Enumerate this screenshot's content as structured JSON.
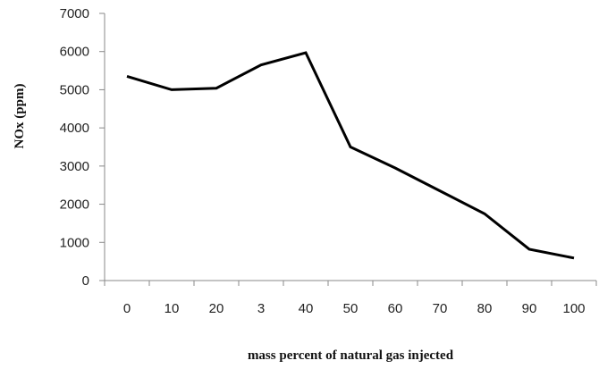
{
  "chart_data": {
    "type": "line",
    "title": "",
    "xlabel": "mass percent of natural gas injected",
    "ylabel": "NOx (ppm)",
    "categories": [
      "0",
      "10",
      "20",
      "3",
      "40",
      "50",
      "60",
      "70",
      "80",
      "90",
      "100"
    ],
    "series": [
      {
        "values": [
          5350,
          5000,
          5040,
          5650,
          5970,
          3500,
          2950,
          2350,
          1750,
          820,
          590
        ]
      }
    ],
    "ylim": [
      0,
      7000
    ],
    "yticks": [
      "0",
      "1000",
      "2000",
      "3000",
      "4000",
      "5000",
      "6000",
      "7000"
    ],
    "grid": false,
    "legend": "none",
    "colors": {
      "line": "#000000",
      "axis": "#888888",
      "text": "#222222"
    }
  }
}
